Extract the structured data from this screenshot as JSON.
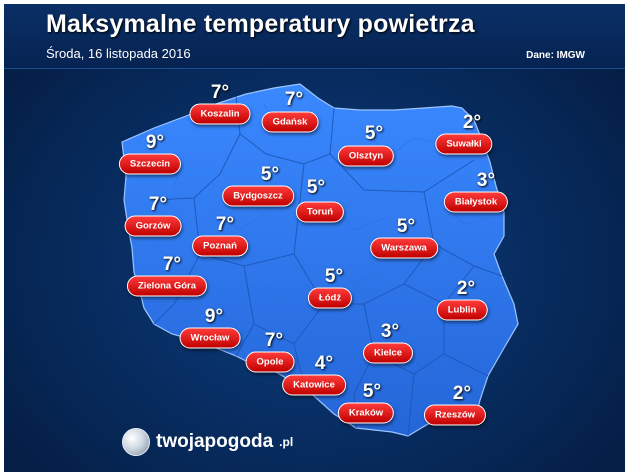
{
  "title": "Maksymalne temperatury powietrza",
  "date": "Środa, 16 listopada 2016",
  "source": "Dane: IMGW",
  "brand": {
    "name": "twojapogoda",
    "suffix": ".pl"
  },
  "colors": {
    "background": "#072a5c",
    "land": "#2f7df5",
    "label": "#d90000"
  },
  "cities": [
    {
      "name": "Koszalin",
      "temp": "7°"
    },
    {
      "name": "Gdańsk",
      "temp": "7°"
    },
    {
      "name": "Olsztyn",
      "temp": "5°"
    },
    {
      "name": "Suwałki",
      "temp": "2°"
    },
    {
      "name": "Szczecin",
      "temp": "9°"
    },
    {
      "name": "Bydgoszcz",
      "temp": "5°"
    },
    {
      "name": "Toruń",
      "temp": "5°"
    },
    {
      "name": "Białystok",
      "temp": "3°"
    },
    {
      "name": "Gorzów",
      "temp": "7°"
    },
    {
      "name": "Poznań",
      "temp": "7°"
    },
    {
      "name": "Warszawa",
      "temp": "5°"
    },
    {
      "name": "Zielona Góra",
      "temp": "7°"
    },
    {
      "name": "Łódź",
      "temp": "5°"
    },
    {
      "name": "Lublin",
      "temp": "2°"
    },
    {
      "name": "Wrocław",
      "temp": "9°"
    },
    {
      "name": "Kielce",
      "temp": "3°"
    },
    {
      "name": "Opole",
      "temp": "7°"
    },
    {
      "name": "Katowice",
      "temp": "4°"
    },
    {
      "name": "Kraków",
      "temp": "5°"
    },
    {
      "name": "Rzeszów",
      "temp": "2°"
    }
  ]
}
